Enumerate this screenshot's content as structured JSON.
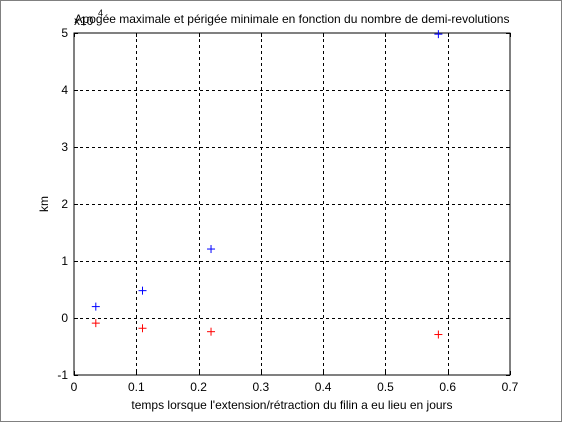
{
  "chart_data": {
    "type": "scatter",
    "title": "Apogée maximale et périgée minimale en fonction du nombre de demi-revolutions",
    "xlabel": "temps lorsque l'extension/rétraction du filin a eu lieu en jours",
    "ylabel": "km",
    "y_exponent_label": "x10",
    "y_exponent_power": "4",
    "xlim": [
      0,
      0.7
    ],
    "ylim": [
      -1,
      5
    ],
    "xticks": [
      0,
      0.1,
      0.2,
      0.3,
      0.4,
      0.5,
      0.6,
      0.7
    ],
    "xtick_labels": [
      "0",
      "0.1",
      "0.2",
      "0.3",
      "0.4",
      "0.5",
      "0.6",
      "0.7"
    ],
    "yticks": [
      -1,
      0,
      1,
      2,
      3,
      4,
      5
    ],
    "ytick_labels": [
      "-1",
      "0",
      "1",
      "2",
      "3",
      "4",
      "5"
    ],
    "grid": true,
    "series": [
      {
        "color": "#0000ff",
        "marker": "+",
        "x": [
          0.035,
          0.11,
          0.22,
          0.585
        ],
        "y": [
          0.2,
          0.48,
          1.21,
          4.98
        ]
      },
      {
        "color": "#ff0000",
        "marker": "+",
        "x": [
          0.035,
          0.11,
          0.22,
          0.585
        ],
        "y": [
          -0.09,
          -0.18,
          -0.24,
          -0.29
        ]
      }
    ]
  }
}
